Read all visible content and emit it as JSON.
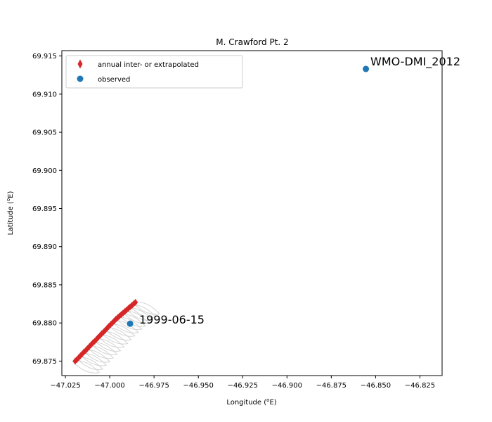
{
  "chart_data": {
    "type": "scatter",
    "title": "M. Crawford Pt. 2",
    "xlabel": "Longitude (",
    "xlabel_sup": "o",
    "xlabel_end": "E)",
    "ylabel": "Latitude (",
    "ylabel_sup": "o",
    "ylabel_end": "E)",
    "xlim": [
      -47.027,
      -46.8125
    ],
    "ylim": [
      69.8731,
      69.9157
    ],
    "xticks": [
      -47.025,
      -47.0,
      -46.975,
      -46.95,
      -46.925,
      -46.9,
      -46.875,
      -46.85,
      -46.825
    ],
    "xtick_labels": [
      "−47.025",
      "−47.000",
      "−46.975",
      "−46.950",
      "−46.925",
      "−46.900",
      "−46.875",
      "−46.850",
      "−46.825"
    ],
    "yticks": [
      69.875,
      69.88,
      69.885,
      69.89,
      69.895,
      69.9,
      69.905,
      69.91,
      69.915
    ],
    "ytick_labels": [
      "69.875",
      "69.880",
      "69.885",
      "69.890",
      "69.895",
      "69.900",
      "69.905",
      "69.910",
      "69.915"
    ],
    "grid": false,
    "legend_position": "upper-left",
    "series": [
      {
        "name": "annual inter- or extrapolated",
        "marker": "diamond",
        "color": "#d62728",
        "x": [
          -47.0195,
          -47.0185,
          -47.0175,
          -47.0165,
          -47.0155,
          -47.0145,
          -47.0135,
          -47.0125,
          -47.0115,
          -47.0105,
          -47.0095,
          -47.0085,
          -47.0075,
          -47.0065,
          -47.0055,
          -47.0045,
          -47.0035,
          -47.0025,
          -47.0015,
          -47.0005,
          -46.9995,
          -46.9985,
          -46.9975,
          -46.9965,
          -46.9955,
          -46.9945,
          -46.9935,
          -46.9925,
          -46.9915,
          -46.9905,
          -46.9895,
          -46.9885,
          -46.9875,
          -46.9865,
          -46.9855
        ],
        "y": [
          69.875,
          69.8752,
          69.87545,
          69.8757,
          69.87595,
          69.8762,
          69.8764,
          69.87665,
          69.8769,
          69.87715,
          69.8774,
          69.8776,
          69.87785,
          69.8781,
          69.87835,
          69.8786,
          69.8788,
          69.87905,
          69.8793,
          69.87955,
          69.8798,
          69.88,
          69.88025,
          69.8805,
          69.8807,
          69.8809,
          69.8811,
          69.8813,
          69.8815,
          69.8817,
          69.8819,
          69.8821,
          69.8823,
          69.8825,
          69.8827
        ]
      },
      {
        "name": "observed",
        "marker": "circle",
        "color": "#1f77b4",
        "x": [
          -46.9885,
          -46.8555
        ],
        "y": [
          69.8799,
          69.9133
        ]
      }
    ],
    "error_outlines": {
      "color": "#d3d3d3",
      "dx": 0.012,
      "dy": -0.0015
    },
    "annotations": [
      {
        "text": "1999-06-15",
        "x": -46.985,
        "y": 69.88
      },
      {
        "text": "WMO-DMI_2012",
        "x": -46.8525,
        "y": 69.9134
      }
    ]
  }
}
